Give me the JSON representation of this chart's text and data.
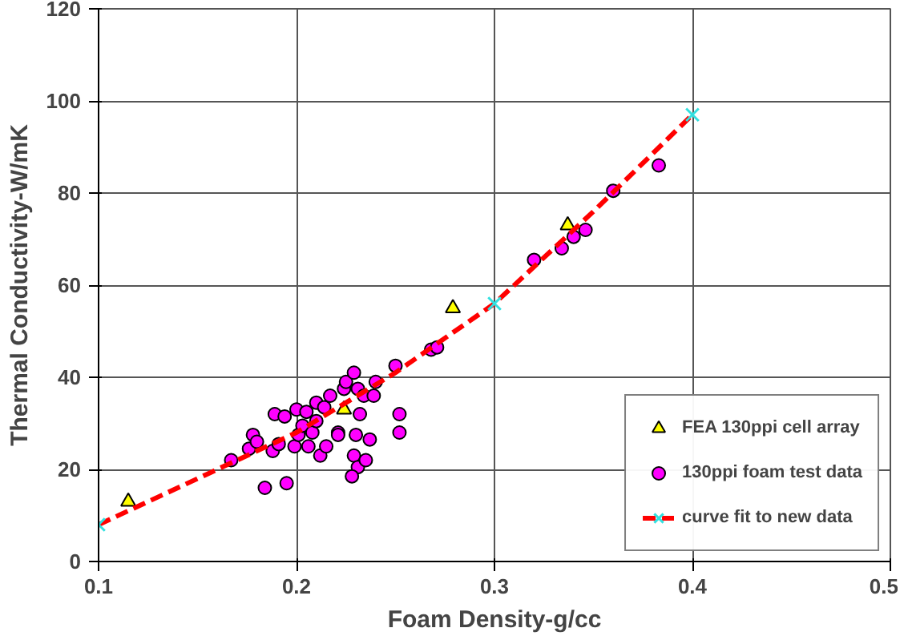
{
  "chart_data": {
    "type": "scatter",
    "xlabel": "Foam Density-g/cc",
    "ylabel": "Thermal Conductivity-W/mK",
    "xlim": [
      0.1,
      0.5
    ],
    "ylim": [
      0,
      120
    ],
    "xticks": [
      0.1,
      0.2,
      0.3,
      0.4,
      0.5
    ],
    "yticks": [
      0,
      20,
      40,
      60,
      80,
      100,
      120
    ],
    "grid": true,
    "legend": "bottom right",
    "series": [
      {
        "name": "FEA 130ppi cell array",
        "type": "scatter",
        "marker": "triangle",
        "color": "#ffff00",
        "x": [
          0.115,
          0.224,
          0.279,
          0.337
        ],
        "values": [
          13,
          33,
          55,
          73
        ]
      },
      {
        "name": "130ppi foam test data",
        "type": "scatter",
        "marker": "circle",
        "color": "#ff00ff",
        "x": [
          0.167,
          0.176,
          0.178,
          0.18,
          0.184,
          0.188,
          0.189,
          0.191,
          0.195,
          0.194,
          0.2,
          0.199,
          0.201,
          0.203,
          0.205,
          0.206,
          0.208,
          0.21,
          0.21,
          0.212,
          0.214,
          0.215,
          0.217,
          0.221,
          0.221,
          0.224,
          0.225,
          0.229,
          0.231,
          0.23,
          0.229,
          0.231,
          0.228,
          0.235,
          0.237,
          0.232,
          0.234,
          0.239,
          0.24,
          0.25,
          0.252,
          0.252,
          0.268,
          0.271,
          0.32,
          0.334,
          0.34,
          0.346,
          0.36,
          0.383
        ],
        "values": [
          22,
          24.5,
          27.5,
          26,
          16,
          24,
          32,
          25.5,
          17,
          31.5,
          33,
          25,
          27.5,
          29.5,
          32.5,
          25,
          28,
          34.5,
          30.5,
          23,
          33.5,
          25,
          36,
          28,
          27.5,
          37.5,
          39,
          41,
          37.5,
          27.5,
          23,
          20.5,
          18.5,
          22,
          26.5,
          32,
          36,
          36,
          39,
          42.5,
          32,
          28,
          46,
          46.5,
          65.5,
          68,
          70.5,
          72,
          80.5,
          86
        ]
      },
      {
        "name": "curve fit to new data",
        "type": "line",
        "line_style": "dashed",
        "color": "#ff0000",
        "x": [
          0.1,
          0.15,
          0.2,
          0.25,
          0.3,
          0.35,
          0.4
        ],
        "values": [
          8,
          18,
          28,
          41,
          56,
          76,
          97
        ]
      },
      {
        "type": "scatter",
        "marker": "cross",
        "color": "#33e0e0",
        "x": [
          0.1,
          0.3,
          0.4
        ],
        "values": [
          8,
          56,
          97
        ]
      }
    ]
  }
}
